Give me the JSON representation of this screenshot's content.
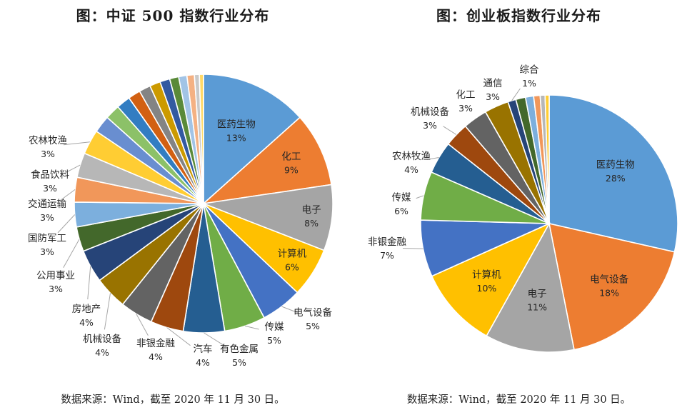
{
  "colors": [
    "#5b9bd5",
    "#ed7d31",
    "#a5a5a5",
    "#ffc000",
    "#4472c4",
    "#70ad47",
    "#255e91",
    "#9e480e",
    "#636363",
    "#997300",
    "#264478",
    "#43682b",
    "#7cafdd",
    "#f1975a",
    "#b7b7b7",
    "#ffcd33",
    "#698ed0",
    "#8cc168",
    "#327dc2",
    "#d26012",
    "#848484",
    "#cc9a00",
    "#335aa1",
    "#5a8a39",
    "#a2c4e6",
    "#f4b183",
    "#c9c9c9",
    "#ffd966",
    "#8faadc",
    "#a9d18e"
  ],
  "chart_data": [
    {
      "type": "pie",
      "title": "图：中证 500 指数行业分布",
      "source": "数据来源：Wind，截至 2020 年 11 月 30 日。",
      "categories": [
        "医药生物",
        "化工",
        "电子",
        "计算机",
        "电气设备",
        "传媒",
        "有色金属",
        "汽车",
        "非银金融",
        "机械设备",
        "房地产",
        "公用事业",
        "国防军工",
        "交通运输",
        "食品饮料",
        "农林牧渔",
        "",
        "",
        "",
        "",
        "",
        "",
        "",
        "",
        "",
        "",
        "",
        ""
      ],
      "values": [
        13,
        9,
        8,
        6,
        5,
        5,
        5,
        4,
        4,
        4,
        4,
        3,
        3,
        3,
        3,
        3,
        2.1,
        1.8,
        1.7,
        1.5,
        1.4,
        1.3,
        1.2,
        1.1,
        1.0,
        0.9,
        0.6,
        0.5
      ],
      "labels": [
        "13%",
        "9%",
        "8%",
        "6%",
        "5%",
        "5%",
        "5%",
        "4%",
        "4%",
        "4%",
        "4%",
        "3%",
        "3%",
        "3%",
        "3%",
        "3%",
        "",
        "",
        "",
        "",
        "",
        "",
        "",
        "",
        "",
        "",
        "",
        ""
      ]
    },
    {
      "type": "pie",
      "title": "图：创业板指数行业分布",
      "source": "数据来源：Wind，截至 2020 年 11 月 30 日。",
      "categories": [
        "医药生物",
        "电气设备",
        "电子",
        "计算机",
        "非银金融",
        "传媒",
        "农林牧渔",
        "机械设备",
        "化工",
        "通信",
        "综合",
        "",
        "",
        "",
        "",
        ""
      ],
      "values": [
        28,
        18,
        11,
        10,
        7,
        6,
        4,
        3,
        3,
        3,
        1,
        1.2,
        1.0,
        0.8,
        0.6,
        0.5
      ],
      "labels": [
        "28%",
        "18%",
        "11%",
        "10%",
        "7%",
        "6%",
        "4%",
        "3%",
        "3%",
        "3%",
        "1%",
        "",
        "",
        "",
        "",
        ""
      ]
    }
  ]
}
